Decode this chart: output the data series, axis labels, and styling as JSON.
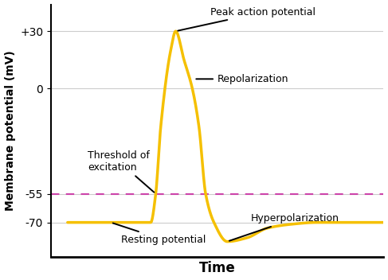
{
  "title": "",
  "xlabel": "Time",
  "ylabel": "Membrane potential (mV)",
  "ylim": [
    -88,
    44
  ],
  "xlim": [
    0,
    10
  ],
  "yticks": [
    -70,
    -55,
    0,
    30
  ],
  "ytick_labels": [
    "-70",
    "-55",
    "0",
    "+30"
  ],
  "threshold_y": -55,
  "resting_y": -70,
  "peak_y": 30,
  "hyperpolar_y": -80,
  "line_color": "#F5C000",
  "line_width": 2.5,
  "threshold_line_color": "#CC44AA",
  "background_color": "#FFFFFF",
  "grid_color": "#CCCCCC",
  "figsize": [
    4.87,
    3.52
  ],
  "dpi": 100
}
